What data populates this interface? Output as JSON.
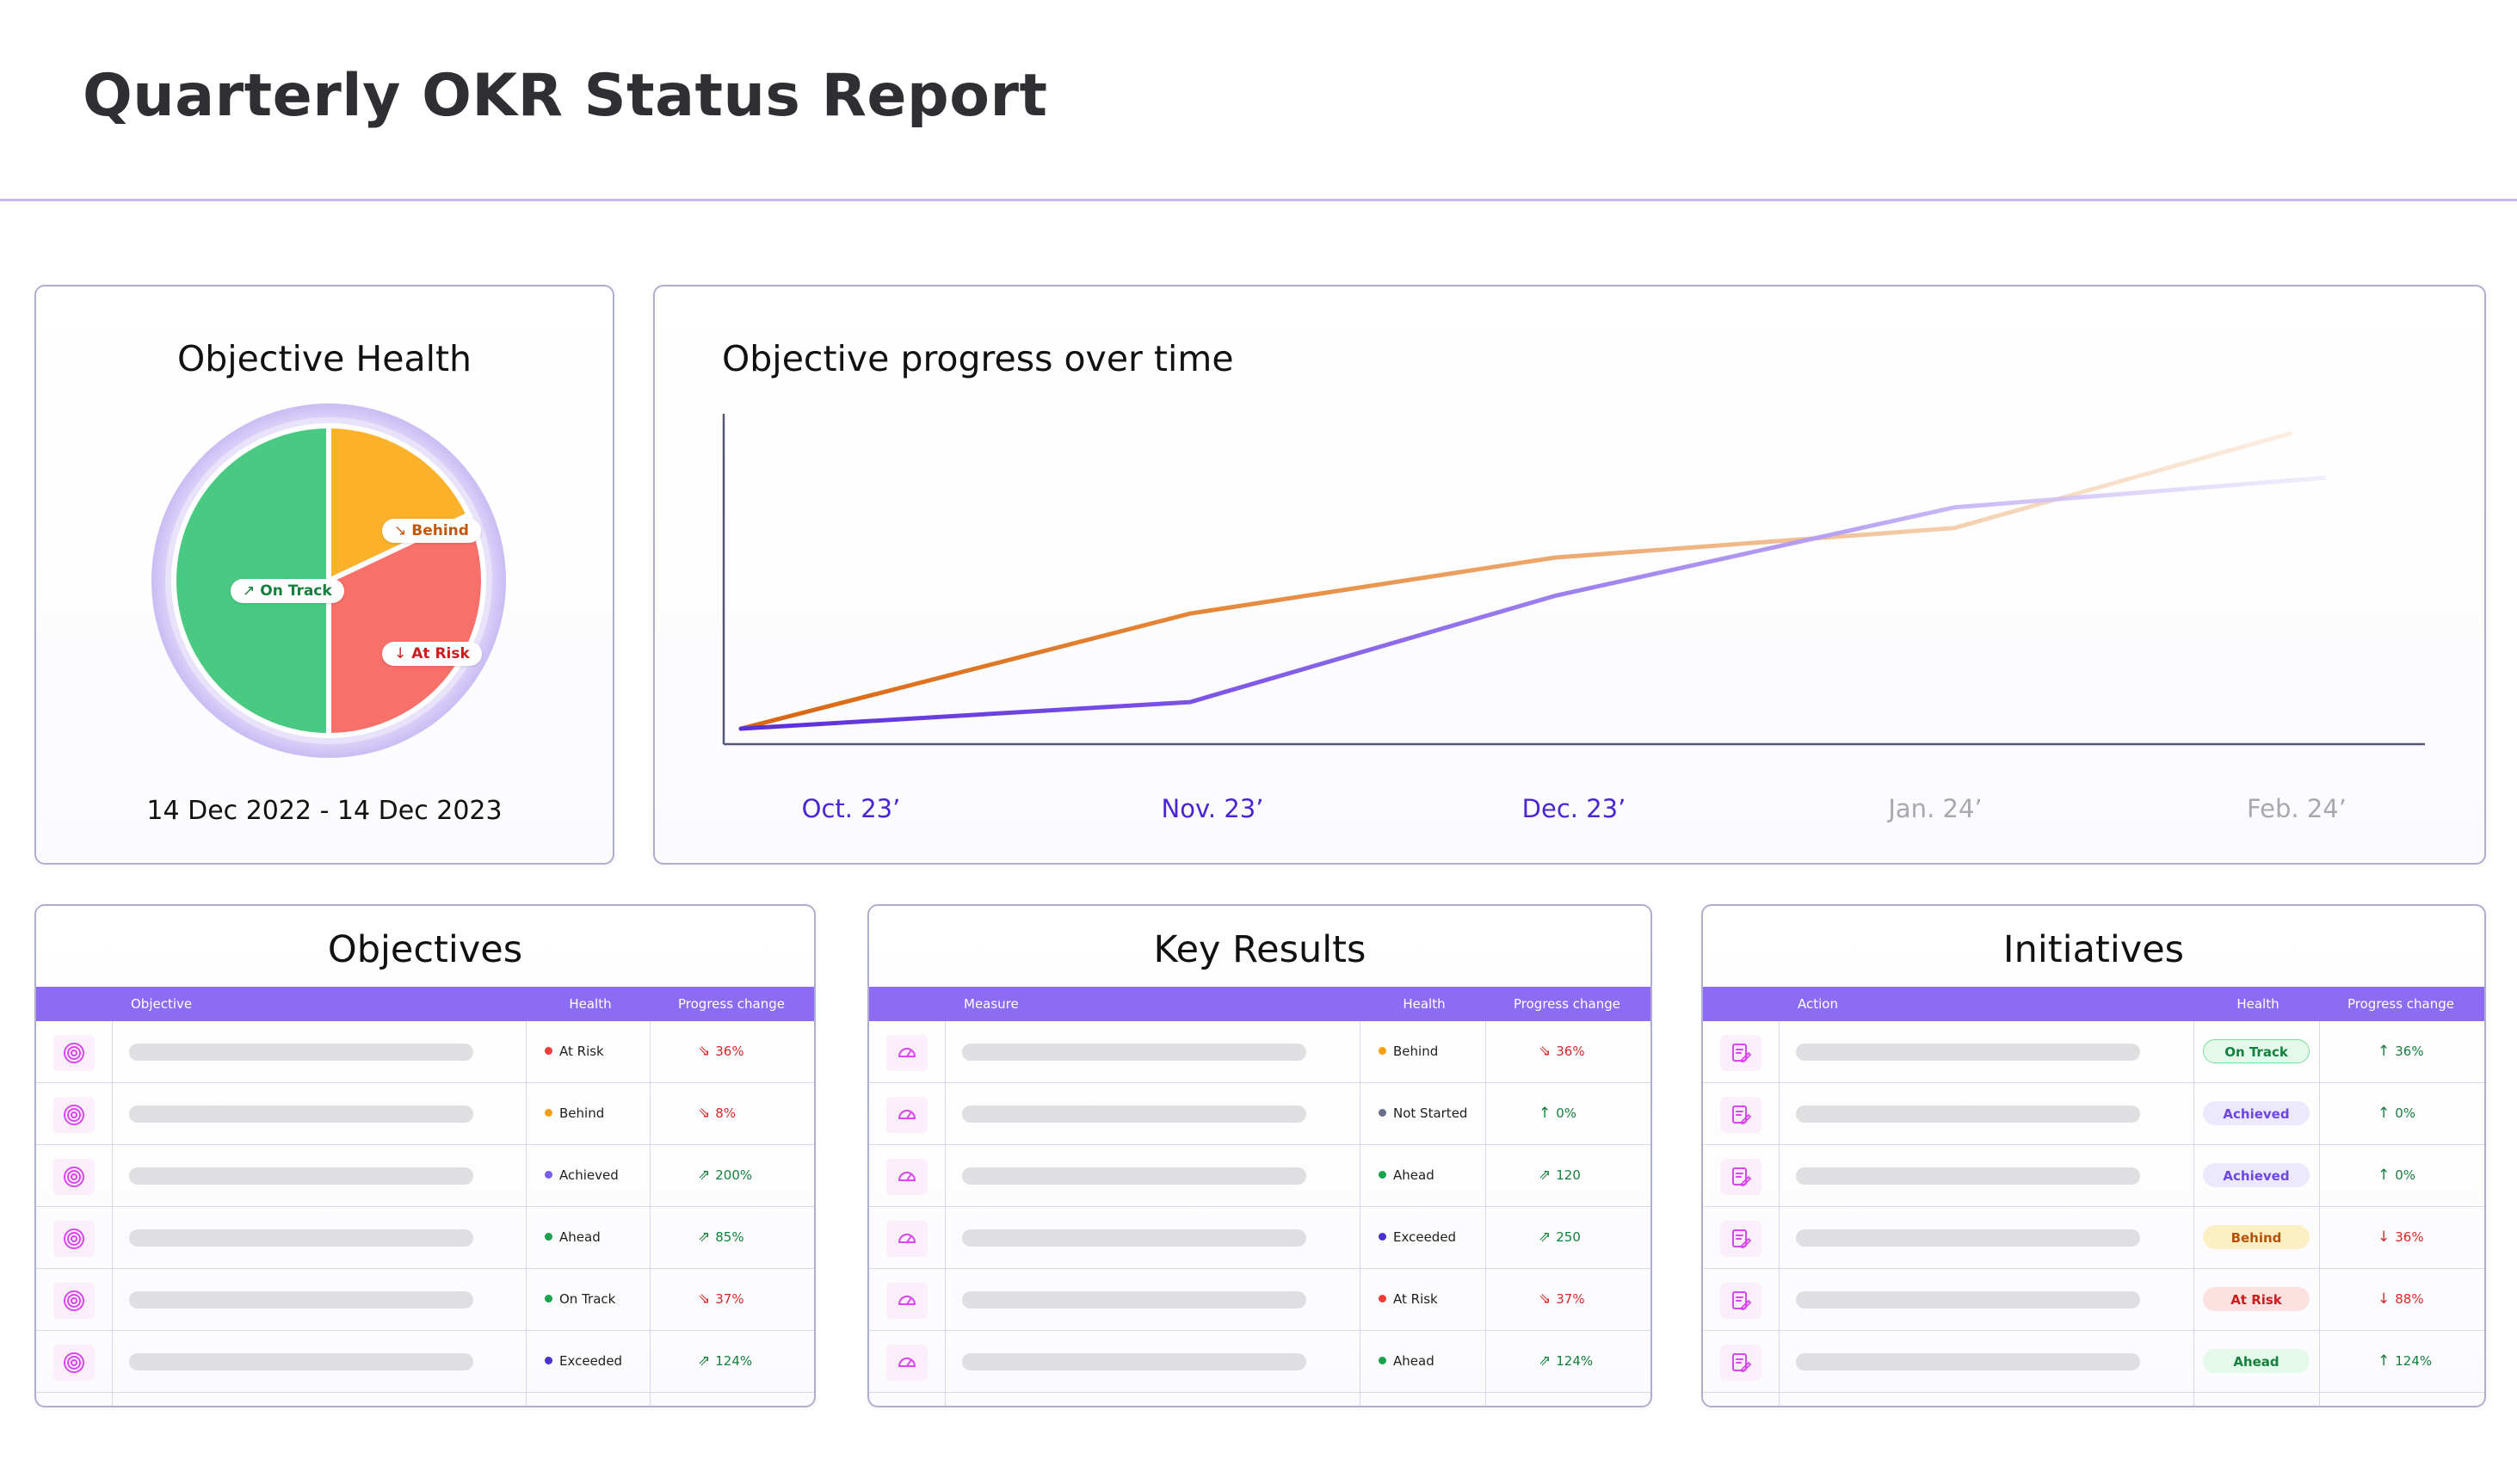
{
  "page": {
    "title": "Quarterly OKR Status Report"
  },
  "colors": {
    "accent": "#8b6cf3",
    "on_track": "#4ac983",
    "behind": "#fbb12a",
    "at_risk": "#f7706a",
    "achieved": "#7c5cf0",
    "ahead": "#16a34a",
    "exceeded": "#4b2fd6",
    "not_started": "#6b6f86",
    "orange_line": "#d96510",
    "purple_line": "#5b2fd8",
    "muted_tick": "#a8a8ad"
  },
  "health": {
    "title": "Objective Health",
    "date_range": "14 Dec 2022 - 14 Dec 2023",
    "labels": {
      "on_track": "On Track",
      "behind": "Behind",
      "at_risk": "At Risk"
    },
    "shares": {
      "on_track": 0.5,
      "behind": 0.18,
      "at_risk": 0.32
    }
  },
  "progress": {
    "title": "Objective progress over time"
  },
  "chart_data": {
    "type": "line",
    "title": "Objective progress over time",
    "x": [
      "Oct. 23’",
      "Nov. 23’",
      "Dec. 23’",
      "Jan. 24’",
      "Feb. 24’"
    ],
    "series": [
      {
        "values": [
          0,
          39,
          58,
          68,
          100
        ],
        "color": "#d96510"
      },
      {
        "values": [
          0,
          9,
          45,
          75,
          85
        ],
        "color": "#5b2fd8"
      }
    ],
    "ylim": [
      0,
      100
    ],
    "grid": false,
    "note": "Jan. 24’ and Feb. 24’ ticks shown faded"
  },
  "objectives": {
    "title": "Objectives",
    "columns": [
      "Objective",
      "Health",
      "Progress change"
    ],
    "rows": [
      {
        "icon": "target-icon",
        "health": "At Risk",
        "health_color": "#ef3b3b",
        "change": "36%",
        "trend": "down"
      },
      {
        "icon": "target-icon",
        "health": "Behind",
        "health_color": "#f59e0b",
        "change": "8%",
        "trend": "down"
      },
      {
        "icon": "target-icon",
        "health": "Achieved",
        "health_color": "#7c5cf0",
        "change": "200%",
        "trend": "up"
      },
      {
        "icon": "target-icon",
        "health": "Ahead",
        "health_color": "#16a34a",
        "change": "85%",
        "trend": "up"
      },
      {
        "icon": "target-icon",
        "health": "On Track",
        "health_color": "#16a34a",
        "change": "37%",
        "trend": "down"
      },
      {
        "icon": "target-icon",
        "health": "Exceeded",
        "health_color": "#4b2fd6",
        "change": "124%",
        "trend": "up"
      }
    ]
  },
  "key_results": {
    "title": "Key Results",
    "columns": [
      "Measure",
      "Health",
      "Progress change"
    ],
    "rows": [
      {
        "icon": "gauge-icon",
        "health": "Behind",
        "health_color": "#f59e0b",
        "change": "36%",
        "trend": "down"
      },
      {
        "icon": "gauge-icon",
        "health": "Not Started",
        "health_color": "#6b6f86",
        "change": "0%",
        "trend": "up"
      },
      {
        "icon": "gauge-icon",
        "health": "Ahead",
        "health_color": "#16a34a",
        "change": "120",
        "trend": "up"
      },
      {
        "icon": "gauge-icon",
        "health": "Exceeded",
        "health_color": "#4b2fd6",
        "change": "250",
        "trend": "up"
      },
      {
        "icon": "gauge-icon",
        "health": "At Risk",
        "health_color": "#ef3b3b",
        "change": "37%",
        "trend": "down"
      },
      {
        "icon": "gauge-icon",
        "health": "Ahead",
        "health_color": "#16a34a",
        "change": "124%",
        "trend": "up"
      }
    ]
  },
  "initiatives": {
    "title": "Initiatives",
    "columns": [
      "Action",
      "Health",
      "Progress change"
    ],
    "rows": [
      {
        "icon": "edit-note-icon",
        "health": "On Track",
        "pill_bg": "#e3f9ea",
        "pill_fg": "#15803d",
        "pill_border": "#7fdca0",
        "change": "36%",
        "trend": "up"
      },
      {
        "icon": "edit-note-icon",
        "health": "Achieved",
        "pill_bg": "#ece8fd",
        "pill_fg": "#6b46e0",
        "pill_border": "#ece8fd",
        "change": "0%",
        "trend": "up"
      },
      {
        "icon": "edit-note-icon",
        "health": "Achieved",
        "pill_bg": "#ece8fd",
        "pill_fg": "#6b46e0",
        "pill_border": "#ece8fd",
        "change": "0%",
        "trend": "up"
      },
      {
        "icon": "edit-note-icon",
        "health": "Behind",
        "pill_bg": "#fdefc4",
        "pill_fg": "#b45309",
        "pill_border": "#fdefc4",
        "change": "36%",
        "trend": "down"
      },
      {
        "icon": "edit-note-icon",
        "health": "At Risk",
        "pill_bg": "#fde1e1",
        "pill_fg": "#c81e1e",
        "pill_border": "#fde1e1",
        "change": "88%",
        "trend": "down"
      },
      {
        "icon": "edit-note-icon",
        "health": "Ahead",
        "pill_bg": "#e3f9ea",
        "pill_fg": "#15803d",
        "pill_border": "#e3f9ea",
        "change": "124%",
        "trend": "up"
      }
    ]
  }
}
